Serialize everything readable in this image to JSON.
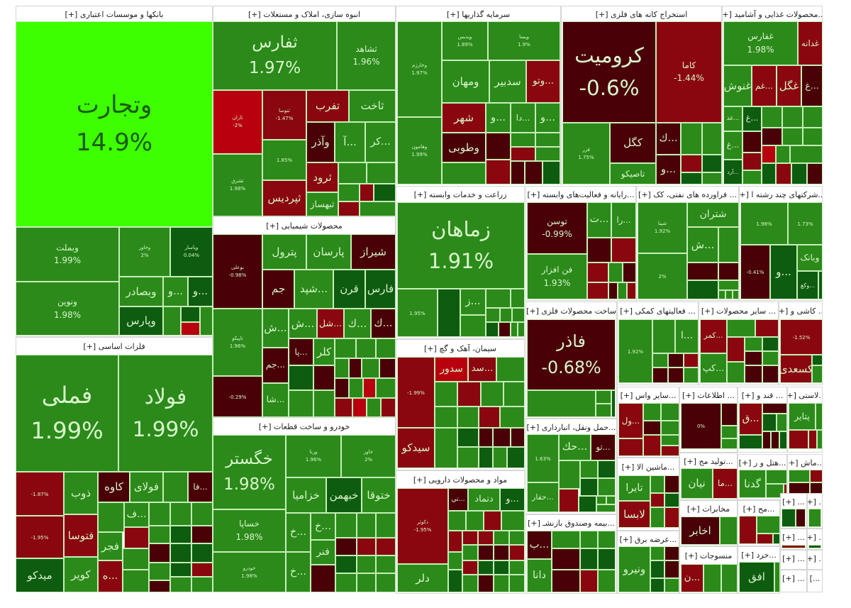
{
  "colors": {
    "G1": "#2b8a1a",
    "G2": "#0e5c10",
    "G3": "#3dff00",
    "R1": "#8a0710",
    "R2": "#4a0007",
    "R3": "#b8000f",
    "text_light": "#d9f5cc",
    "text_dark": "#1b5a10"
  },
  "sectors": [
    {
      "title": "بانکها و موسسات اعتباری [+]",
      "tiles": [
        {
          "label": "وتجارت",
          "pct": "14.9%",
          "color": "G3"
        },
        {
          "label": "وبملت",
          "pct": "1.99%",
          "color": "G1"
        },
        {
          "label": "ونوین",
          "pct": "1.98%",
          "color": "G1"
        },
        {
          "label": "وخاور",
          "pct": "2%",
          "color": "G1"
        },
        {
          "label": "وپاسار",
          "pct": "0.04%",
          "color": "G2"
        },
        {
          "label": "وبصادر",
          "pct": "",
          "color": "G1"
        },
        {
          "label": "...و",
          "pct": "",
          "color": "G1"
        },
        {
          "label": "...و",
          "pct": "",
          "color": "G2"
        },
        {
          "label": "وپارس",
          "pct": "",
          "color": "G2"
        }
      ]
    },
    {
      "title": "انبوه سازی، املاک و مستغلات [+]",
      "tiles": [
        {
          "label": "ثفارس",
          "pct": "1.97%",
          "color": "G1"
        },
        {
          "label": "ثشاهد",
          "pct": "1.96%",
          "color": "G1"
        },
        {
          "label": "ثاران",
          "pct": "-2%",
          "color": "R3"
        },
        {
          "label": "ثنوسا",
          "pct": "-1.47%",
          "color": "R1"
        },
        {
          "label": "تفرب",
          "pct": "",
          "color": "R1"
        },
        {
          "label": "ثاخت",
          "pct": "",
          "color": "G1"
        },
        {
          "label": "وآذر",
          "pct": "",
          "color": "R2"
        },
        {
          "label": "...آ",
          "pct": "",
          "color": "G1"
        },
        {
          "label": "...کر",
          "pct": "",
          "color": "G1"
        },
        {
          "label": "ثشرق",
          "pct": "1.98%",
          "color": "G1"
        },
        {
          "label": "",
          "pct": "1.85%",
          "color": "G1"
        },
        {
          "label": "ثپردیس",
          "pct": "",
          "color": "R1"
        },
        {
          "label": "ثرود",
          "pct": "",
          "color": "R1"
        },
        {
          "label": "ثبهساز",
          "pct": "",
          "color": "G1"
        }
      ]
    },
    {
      "title": "سرمایه گذاریها [+]",
      "tiles": [
        {
          "label": "وخارزم",
          "pct": "1.97%",
          "color": "G1"
        },
        {
          "label": "وهامون",
          "pct": "1.99%",
          "color": "G1"
        },
        {
          "label": "وپدیس",
          "pct": "1.89%",
          "color": "G1"
        },
        {
          "label": "ویسا",
          "pct": "1.9%",
          "color": "G1"
        },
        {
          "label": "ومهان",
          "pct": "",
          "color": "G1"
        },
        {
          "label": "سدبیر",
          "pct": "",
          "color": "G1"
        },
        {
          "label": "...وتو",
          "pct": "",
          "color": "R1"
        },
        {
          "label": "شهر",
          "pct": "",
          "color": "R1"
        },
        {
          "label": "وطوبی",
          "pct": "",
          "color": "R2"
        },
        {
          "label": "...و",
          "pct": "",
          "color": "G1"
        },
        {
          "label": "...دا",
          "pct": "",
          "color": "G1"
        },
        {
          "label": "...و",
          "pct": "",
          "color": "G1"
        }
      ]
    },
    {
      "title": "استخراج کانه های فلزی [+]",
      "tiles": [
        {
          "label": "کرومیت",
          "pct": "-0.6%",
          "color": "R2"
        },
        {
          "label": "کاما",
          "pct": "-1.44%",
          "color": "R1"
        },
        {
          "label": "فزر",
          "pct": "1.75%",
          "color": "G1"
        },
        {
          "label": "کگل",
          "pct": "",
          "color": "R2"
        },
        {
          "label": "تاصیکو",
          "pct": "",
          "color": "G1"
        },
        {
          "label": "...ك",
          "pct": "",
          "color": "R2"
        },
        {
          "label": "...و",
          "pct": "",
          "color": "R2"
        }
      ]
    },
    {
      "title": "...محصولات غذایی و آشامید [+]",
      "tiles": [
        {
          "label": "غفارس",
          "pct": "1.98%",
          "color": "G1"
        },
        {
          "label": "غدانه",
          "pct": "",
          "color": "R1"
        },
        {
          "label": "غنوش",
          "pct": "",
          "color": "G1"
        },
        {
          "label": "...غم",
          "pct": "",
          "color": "R1"
        },
        {
          "label": "غگل",
          "pct": "",
          "color": "R1"
        },
        {
          "label": "...غ",
          "pct": "",
          "color": "R2"
        },
        {
          "label": "...غد",
          "pct": "",
          "color": "G1"
        },
        {
          "label": "...غ",
          "pct": "",
          "color": "G2"
        },
        {
          "label": "...غ",
          "pct": "",
          "color": "G1"
        },
        {
          "label": "...آرد",
          "pct": "",
          "color": "G2"
        }
      ]
    },
    {
      "title": "محصولات شیمیایی [+]",
      "tiles": [
        {
          "label": "بوعلی",
          "pct": "-0.98%",
          "color": "R2"
        },
        {
          "label": "پترول",
          "pct": "",
          "color": "G1"
        },
        {
          "label": "پارسان",
          "pct": "",
          "color": "G1"
        },
        {
          "label": "شیراز",
          "pct": "",
          "color": "R2"
        },
        {
          "label": "جم",
          "pct": "",
          "color": "R2"
        },
        {
          "label": "...شپد",
          "pct": "",
          "color": "G1"
        },
        {
          "label": "قرن",
          "pct": "",
          "color": "G2"
        },
        {
          "label": "فارس",
          "pct": "",
          "color": "G2"
        },
        {
          "label": "تاپیکو",
          "pct": "1.96%",
          "color": "G1"
        },
        {
          "label": "",
          "pct": "-0.29%",
          "color": "R2"
        },
        {
          "label": "...ش",
          "pct": "",
          "color": "G1"
        },
        {
          "label": "...ش",
          "pct": "",
          "color": "G1"
        },
        {
          "label": "...شل",
          "pct": "",
          "color": "R1"
        },
        {
          "label": "...ك",
          "pct": "",
          "color": "G1"
        },
        {
          "label": "...ك",
          "pct": "",
          "color": "R2"
        },
        {
          "label": "...پا",
          "pct": "",
          "color": "R2"
        },
        {
          "label": "کلر",
          "pct": "",
          "color": "G1"
        },
        {
          "label": "...جم",
          "pct": "",
          "color": "R2"
        },
        {
          "label": "...شا",
          "pct": "",
          "color": "G1"
        }
      ]
    },
    {
      "title": "خودرو و ساخت قطعات [+]",
      "tiles": [
        {
          "label": "خگستر",
          "pct": "1.98%",
          "color": "G1"
        },
        {
          "label": "خساپا",
          "pct": "1.98%",
          "color": "G1"
        },
        {
          "label": "خودرو",
          "pct": "1.98%",
          "color": "G1"
        },
        {
          "label": "ورنا",
          "pct": "1.96%",
          "color": "G1"
        },
        {
          "label": "خاور",
          "pct": "2%",
          "color": "G1"
        },
        {
          "label": "خزامیا",
          "pct": "",
          "color": "G1"
        },
        {
          "label": "خبهمن",
          "pct": "",
          "color": "G2"
        },
        {
          "label": "ختوقا",
          "pct": "",
          "color": "G1"
        },
        {
          "label": "...خ",
          "pct": "",
          "color": "G1"
        },
        {
          "label": "...خ",
          "pct": "",
          "color": "G1"
        },
        {
          "label": "فنر",
          "pct": "",
          "color": "G1"
        },
        {
          "label": "...خ",
          "pct": "",
          "color": "G1"
        }
      ]
    },
    {
      "title": "فلزات اساسی [+]",
      "tiles": [
        {
          "label": "فملی",
          "pct": "1.99%",
          "color": "G1"
        },
        {
          "label": "فولاد",
          "pct": "1.99%",
          "color": "G1"
        },
        {
          "label": "",
          "pct": "-1.87%",
          "color": "R1"
        },
        {
          "label": "",
          "pct": "-1.95%",
          "color": "R1"
        },
        {
          "label": "میدکو",
          "pct": "",
          "color": "G2"
        },
        {
          "label": "ذوب",
          "pct": "",
          "color": "G1"
        },
        {
          "label": "فتوسا",
          "pct": "",
          "color": "R1"
        },
        {
          "label": "کویر",
          "pct": "",
          "color": "G1"
        },
        {
          "label": "کاوه",
          "pct": "",
          "color": "R2"
        },
        {
          "label": "فولای",
          "pct": "",
          "color": "G1"
        },
        {
          "label": "...فا",
          "pct": "",
          "color": "R2"
        },
        {
          "label": "...ف",
          "pct": "",
          "color": "G1"
        },
        {
          "label": "فجر",
          "pct": "",
          "color": "G1"
        },
        {
          "label": "...ه",
          "pct": "",
          "color": "R1"
        }
      ]
    },
    {
      "title": "زراعت و خدمات وابسته [+]",
      "tiles": [
        {
          "label": "زماهان",
          "pct": "1.91%",
          "color": "G1"
        },
        {
          "label": "",
          "pct": "1.95%",
          "color": "G1"
        },
        {
          "label": "...ز",
          "pct": "",
          "color": "G1"
        }
      ]
    },
    {
      "title": "سیمان، آهک و گچ [+]",
      "tiles": [
        {
          "label": "",
          "pct": "-1.99%",
          "color": "R1"
        },
        {
          "label": "سدور",
          "pct": "",
          "color": "R3"
        },
        {
          "label": "...سد",
          "pct": "",
          "color": "R1"
        },
        {
          "label": "سیدکو",
          "pct": "",
          "color": "R1"
        }
      ]
    },
    {
      "title": "مواد و محصولات دارویی [+]",
      "tiles": [
        {
          "label": "دکوثر",
          "pct": "-1.95%",
          "color": "R1"
        },
        {
          "label": "دلر",
          "pct": "",
          "color": "G1"
        },
        {
          "label": "...تي",
          "pct": "",
          "color": "R2"
        },
        {
          "label": "دتماد",
          "pct": "",
          "color": "G1"
        },
        {
          "label": "...و",
          "pct": "",
          "color": "G2"
        }
      ]
    },
    {
      "title": "...رایانه و فعالیت‌های وابسته [+]",
      "tiles": [
        {
          "label": "توسن",
          "pct": "-0.99%",
          "color": "R2"
        },
        {
          "label": "فن افزار",
          "pct": "1.93%",
          "color": "G1"
        },
        {
          "label": "...ت",
          "pct": "",
          "color": "G1"
        },
        {
          "label": "...را",
          "pct": "",
          "color": "G1"
        }
      ]
    },
    {
      "title": "... فراورده های نفتی، کک [+]",
      "tiles": [
        {
          "label": "شپنا",
          "pct": "1.92%",
          "color": "G1"
        },
        {
          "label": "شتران",
          "pct": "",
          "color": "G1"
        },
        {
          "label": "...ش",
          "pct": "",
          "color": "G1"
        },
        {
          "label": "",
          "pct": "2%",
          "color": "G1"
        }
      ]
    },
    {
      "title": "...شرکتهای چند رشته ا [+]",
      "tiles": [
        {
          "label": "",
          "pct": "1.98%",
          "color": "G1"
        },
        {
          "label": "",
          "pct": "1.73%",
          "color": "G1"
        },
        {
          "label": "",
          "pct": "-0.41%",
          "color": "R2"
        },
        {
          "label": "...و",
          "pct": "",
          "color": "G2"
        },
        {
          "label": "وبانک",
          "pct": "",
          "color": "G1"
        },
        {
          "label": "...وکغ",
          "pct": "",
          "color": "G2"
        }
      ]
    },
    {
      "title": "ساخت محصولات فلزی [+]",
      "tiles": [
        {
          "label": "فاذر",
          "pct": "-0.68%",
          "color": "R2"
        }
      ]
    },
    {
      "title": "... فعالیتهای کمکی [+]",
      "tiles": [
        {
          "label": "",
          "pct": "1.92%",
          "color": "G1"
        },
        {
          "label": "...ا",
          "pct": "",
          "color": "G1"
        }
      ]
    },
    {
      "title": "... سایر محصولات [+]",
      "tiles": [
        {
          "label": "...کمر",
          "pct": "",
          "color": "R1"
        },
        {
          "label": "...کپ",
          "pct": "",
          "color": "G1"
        }
      ]
    },
    {
      "title": "... کاشی و [+]",
      "tiles": [
        {
          "label": "",
          "pct": "-1.52%",
          "color": "R1"
        },
        {
          "label": "کسعدی",
          "pct": "",
          "color": "R1"
        }
      ]
    },
    {
      "title": "...حمل ونقل، انبارداری [+]",
      "tiles": [
        {
          "label": "",
          "pct": "1.63%",
          "color": "G1"
        },
        {
          "label": "...حك",
          "pct": "",
          "color": "G1"
        },
        {
          "label": "...تو",
          "pct": "",
          "color": "R2"
        },
        {
          "label": "...حفار",
          "pct": "",
          "color": "G1"
        }
      ]
    },
    {
      "title": "...بیمه وصندوق بازنشـ [+]",
      "tiles": [
        {
          "label": "...ب",
          "pct": "",
          "color": "R2"
        },
        {
          "label": "دانا",
          "pct": "",
          "color": "G1"
        }
      ]
    },
    {
      "title": "...سایر واس [+]",
      "tiles": [
        {
          "label": "...ول",
          "pct": "",
          "color": "R1"
        }
      ]
    },
    {
      "title": "...ماشین الا [+]",
      "tiles": [
        {
          "label": "تایرا",
          "pct": "",
          "color": "G1"
        },
        {
          "label": "لابسا",
          "pct": "",
          "color": "R1"
        }
      ]
    },
    {
      "title": "...عرضه برق [+]",
      "tiles": [
        {
          "label": "ونیرو",
          "pct": "",
          "color": "G1"
        }
      ]
    },
    {
      "title": "... اطلاعات [+]",
      "tiles": [
        {
          "label": "",
          "pct": "0%",
          "color": "R2"
        }
      ]
    },
    {
      "title": "...تولید مح [+]",
      "tiles": [
        {
          "label": "نیان",
          "pct": "",
          "color": "G1"
        },
        {
          "label": "...ما",
          "pct": "",
          "color": "R1"
        }
      ]
    },
    {
      "title": "مخابرات [+]",
      "tiles": [
        {
          "label": "اخابر",
          "pct": "",
          "color": "R2"
        }
      ]
    },
    {
      "title": "منسوجات [+]",
      "tiles": [
        {
          "label": "...ن",
          "pct": "",
          "color": "R1"
        }
      ]
    },
    {
      "title": "... قند و [+]",
      "tiles": [
        {
          "label": "...ق",
          "pct": "",
          "color": "R1"
        }
      ]
    },
    {
      "title": "...لاستی [+]",
      "tiles": [
        {
          "label": "پتایر",
          "pct": "",
          "color": "G1"
        }
      ]
    },
    {
      "title": "...هتل و ر [+]",
      "tiles": [
        {
          "label": "گدنا",
          "pct": "",
          "color": "G1"
        }
      ]
    },
    {
      "title": "...ماش [+]",
      "tiles": []
    },
    {
      "title": "...مح [+]",
      "tiles": []
    },
    {
      "title": "... [+]",
      "tiles": []
    },
    {
      "title": "... [+]",
      "tiles": []
    },
    {
      "title": "...خرد [+]",
      "tiles": [
        {
          "label": "افق",
          "pct": "",
          "color": "G2"
        }
      ]
    },
    {
      "title": "... [+]",
      "tiles": []
    },
    {
      "title": "... [+]",
      "tiles": []
    },
    {
      "title": "... [+]",
      "tiles": []
    },
    {
      "title": "... [+]",
      "tiles": []
    },
    {
      "title": "... [+]",
      "tiles": []
    },
    {
      "title": "...]",
      "tiles": []
    }
  ]
}
